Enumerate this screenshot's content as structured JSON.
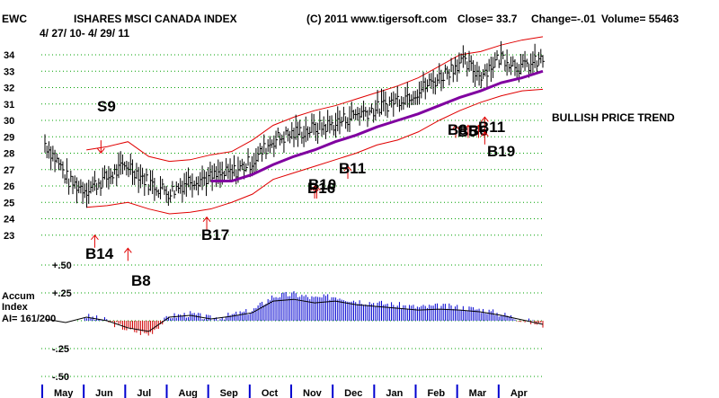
{
  "header": {
    "ticker": "EWC",
    "name": "ISHARES MSCI CANADA INDEX",
    "date_range": "4/ 27/ 10- 4/ 29/ 11",
    "copyright": "(C) 2011 www.tigersoft.com",
    "close": "Close= 33.7",
    "change": "Change=-.01",
    "volume": "Volume= 55463"
  },
  "trend_label": "BULLISH PRICE TREND",
  "indicator": {
    "name": "Accum",
    "name2": "Index",
    "ai_value": "AI= 161/200",
    "tick_labels": [
      "+.50",
      "+.25",
      "-.25",
      "-.50"
    ],
    "tick_values": [
      0.5,
      0.25,
      -0.25,
      -0.5
    ]
  },
  "chart_data": {
    "type": "line",
    "title": "ISHARES MSCI CANADA INDEX",
    "xlabel": "",
    "ylabel": "",
    "ylim": [
      23,
      34
    ],
    "y_ticks": [
      23,
      24,
      25,
      26,
      27,
      28,
      29,
      30,
      31,
      32,
      33,
      34
    ],
    "x_categories": [
      "May",
      "Jun",
      "Jul",
      "Aug",
      "Sep",
      "Oct",
      "Nov",
      "Dec",
      "Jan",
      "Feb",
      "Mar",
      "Apr"
    ],
    "grid": true,
    "price": {
      "x": [
        0,
        0.3,
        0.6,
        1,
        1.5,
        2,
        2.5,
        3,
        3.5,
        4,
        4.5,
        5,
        5.5,
        6,
        6.5,
        7,
        7.5,
        8,
        8.5,
        9,
        9.5,
        10,
        10.5,
        11,
        11.5,
        12
      ],
      "close": [
        28.6,
        27.5,
        26.2,
        25.8,
        26.5,
        27.3,
        26.2,
        25.6,
        26.4,
        26.5,
        26.8,
        27.5,
        28.8,
        29.2,
        29.5,
        29.8,
        30.4,
        30.7,
        31.3,
        31.8,
        32.6,
        33.6,
        32.8,
        33.9,
        33.2,
        33.7
      ]
    },
    "ma_21d": {
      "x": [
        4,
        4.5,
        5,
        5.5,
        6,
        6.5,
        7,
        7.5,
        8,
        8.5,
        9,
        9.5,
        10,
        10.5,
        11,
        11.5,
        12
      ],
      "values": [
        26.3,
        26.3,
        26.7,
        27.3,
        27.8,
        28.2,
        28.7,
        29.1,
        29.6,
        30.0,
        30.4,
        30.9,
        31.4,
        31.8,
        32.3,
        32.6,
        33.0
      ]
    },
    "bands": {
      "x": [
        1,
        1.5,
        2,
        2.5,
        3,
        3.5,
        4,
        4.5,
        5,
        5.5,
        6,
        6.5,
        7,
        7.5,
        8,
        8.5,
        9,
        9.5,
        10,
        10.5,
        11,
        11.5,
        12
      ],
      "upper": [
        28.2,
        28.4,
        28.7,
        27.8,
        27.5,
        27.6,
        27.9,
        28.1,
        28.8,
        29.7,
        30.2,
        30.6,
        30.9,
        31.3,
        31.7,
        32.1,
        32.6,
        33.3,
        34.0,
        34.2,
        34.6,
        34.9,
        35.1
      ],
      "lower": [
        24.7,
        24.8,
        25.0,
        24.6,
        24.3,
        24.4,
        24.6,
        25.0,
        25.5,
        26.4,
        26.8,
        27.2,
        27.6,
        28.0,
        28.5,
        28.8,
        29.3,
        30.0,
        30.6,
        31.1,
        31.5,
        31.8,
        31.9
      ]
    },
    "signals": [
      {
        "label": "S9",
        "x": 1.35,
        "y": 27.8,
        "kind": "sell"
      },
      {
        "label": "B14",
        "x": 1.2,
        "y": 23.0,
        "kind": "buy"
      },
      {
        "label": "B8",
        "x": 2.0,
        "y": 22.2,
        "kind": "buy"
      },
      {
        "label": "B17",
        "x": 3.9,
        "y": 24.1,
        "kind": "buy"
      },
      {
        "label": "B16",
        "x": 6.5,
        "y": 26.0,
        "kind": "buy"
      },
      {
        "label": "B10",
        "x": 6.55,
        "y": 26.0,
        "kind": "buy"
      },
      {
        "label": "B11",
        "x": 7.3,
        "y": 27.2,
        "kind": "buy"
      },
      {
        "label": "B8",
        "x": 9.9,
        "y": 29.7,
        "kind": "buy"
      },
      {
        "label": "B5",
        "x": 10.2,
        "y": 29.7,
        "kind": "buy"
      },
      {
        "label": "B6",
        "x": 10.45,
        "y": 29.7,
        "kind": "buy"
      },
      {
        "label": "B11",
        "x": 10.6,
        "y": 30.2,
        "kind": "buy"
      },
      {
        "label": "B19",
        "x": 10.6,
        "y": 29.3,
        "kind": "buy"
      }
    ],
    "accum_index": {
      "ylim": [
        -0.6,
        0.6
      ],
      "x": [
        0,
        0.5,
        1,
        1.5,
        2,
        2.5,
        3,
        3.5,
        4,
        4.5,
        5,
        5.5,
        6,
        6.5,
        7,
        7.5,
        8,
        8.5,
        9,
        9.5,
        10,
        10.5,
        11,
        11.5,
        12
      ],
      "values": [
        0.02,
        -0.02,
        0.04,
        0.0,
        -0.08,
        -0.12,
        0.04,
        0.06,
        0.02,
        0.05,
        0.09,
        0.22,
        0.24,
        0.2,
        0.22,
        0.18,
        0.16,
        0.14,
        0.12,
        0.13,
        0.12,
        0.1,
        0.06,
        0.01,
        -0.04
      ]
    }
  }
}
